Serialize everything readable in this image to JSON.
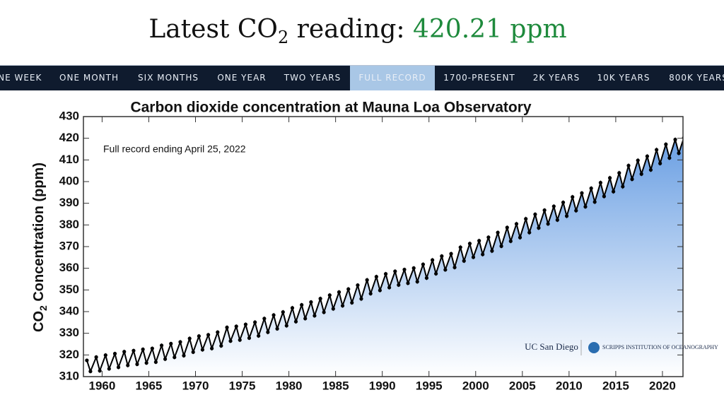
{
  "header": {
    "prefix": "Latest CO",
    "subscript": "2",
    "suffix": " reading: ",
    "value": "420.21 ppm"
  },
  "nav": {
    "tabs": [
      "ONE WEEK",
      "ONE MONTH",
      "SIX MONTHS",
      "ONE YEAR",
      "TWO YEARS",
      "FULL RECORD",
      "1700-PRESENT",
      "2K YEARS",
      "10K YEARS",
      "800K YEARS"
    ],
    "active": 5
  },
  "chart_data": {
    "type": "line",
    "title": "Carbon dioxide concentration at Mauna Loa Observatory",
    "annotation": "Full record ending April 25, 2022",
    "y_label": {
      "prefix": "CO",
      "subscript": "2",
      "suffix": " Concentration (ppm)"
    },
    "logos": [
      "UC San Diego",
      "SCRIPPS INSTITUTION OF OCEANOGRAPHY"
    ],
    "xlim": [
      1958,
      2022.2
    ],
    "xticks": [
      1960,
      1965,
      1970,
      1975,
      1980,
      1985,
      1990,
      1995,
      2000,
      2005,
      2010,
      2015,
      2020
    ],
    "ylim": [
      310,
      430
    ],
    "yticks": [
      310,
      320,
      330,
      340,
      350,
      360,
      370,
      380,
      390,
      400,
      410,
      420,
      430
    ],
    "color": "#000000",
    "fill_color": "#6a9fe3",
    "x": [
      1958.37,
      1958.75,
      1959.37,
      1959.75,
      1960.37,
      1960.75,
      1961.37,
      1961.75,
      1962.37,
      1962.75,
      1963.37,
      1963.75,
      1964.37,
      1964.75,
      1965.37,
      1965.75,
      1966.37,
      1966.75,
      1967.37,
      1967.75,
      1968.37,
      1968.75,
      1969.37,
      1969.75,
      1970.37,
      1970.75,
      1971.37,
      1971.75,
      1972.37,
      1972.75,
      1973.37,
      1973.75,
      1974.37,
      1974.75,
      1975.37,
      1975.75,
      1976.37,
      1976.75,
      1977.37,
      1977.75,
      1978.37,
      1978.75,
      1979.37,
      1979.75,
      1980.37,
      1980.75,
      1981.37,
      1981.75,
      1982.37,
      1982.75,
      1983.37,
      1983.75,
      1984.37,
      1984.75,
      1985.37,
      1985.75,
      1986.37,
      1986.75,
      1987.37,
      1987.75,
      1988.37,
      1988.75,
      1989.37,
      1989.75,
      1990.37,
      1990.75,
      1991.37,
      1991.75,
      1992.37,
      1992.75,
      1993.37,
      1993.75,
      1994.37,
      1994.75,
      1995.37,
      1995.75,
      1996.37,
      1996.75,
      1997.37,
      1997.75,
      1998.37,
      1998.75,
      1999.37,
      1999.75,
      2000.37,
      2000.75,
      2001.37,
      2001.75,
      2002.37,
      2002.75,
      2003.37,
      2003.75,
      2004.37,
      2004.75,
      2005.37,
      2005.75,
      2006.37,
      2006.75,
      2007.37,
      2007.75,
      2008.37,
      2008.75,
      2009.37,
      2009.75,
      2010.37,
      2010.75,
      2011.37,
      2011.75,
      2012.37,
      2012.75,
      2013.37,
      2013.75,
      2014.37,
      2014.75,
      2015.37,
      2015.75,
      2016.37,
      2016.75,
      2017.37,
      2017.75,
      2018.37,
      2018.75,
      2019.37,
      2019.75,
      2020.37,
      2020.75,
      2021.37,
      2021.75,
      2022.29
    ],
    "values": [
      317.5,
      312.4,
      319.0,
      312.7,
      319.9,
      313.6,
      320.6,
      314.3,
      321.5,
      315.2,
      322.0,
      315.7,
      322.6,
      316.3,
      323.0,
      316.7,
      324.4,
      318.1,
      325.2,
      318.9,
      326.0,
      319.7,
      327.6,
      321.3,
      328.7,
      322.4,
      329.3,
      323.0,
      330.5,
      324.2,
      332.7,
      326.4,
      333.2,
      326.9,
      334.1,
      327.8,
      335.1,
      328.8,
      336.8,
      330.5,
      338.4,
      332.1,
      339.8,
      333.5,
      341.7,
      335.4,
      343.1,
      336.8,
      344.4,
      338.1,
      346.0,
      339.7,
      347.6,
      341.3,
      349.0,
      342.7,
      350.4,
      344.1,
      352.2,
      345.9,
      354.6,
      348.3,
      356.1,
      349.8,
      357.4,
      351.1,
      358.6,
      352.3,
      359.4,
      353.1,
      360.1,
      353.8,
      361.8,
      355.5,
      363.8,
      357.5,
      365.6,
      359.3,
      366.7,
      360.4,
      369.7,
      363.4,
      371.4,
      365.1,
      372.7,
      366.4,
      374.3,
      368.0,
      376.5,
      370.2,
      378.8,
      372.5,
      380.5,
      374.2,
      382.8,
      376.5,
      384.9,
      378.6,
      386.8,
      380.5,
      388.6,
      382.3,
      390.4,
      384.1,
      392.9,
      386.6,
      394.7,
      388.4,
      396.9,
      390.6,
      399.5,
      393.2,
      401.7,
      395.4,
      404.0,
      397.7,
      407.4,
      401.1,
      409.8,
      403.5,
      411.7,
      405.4,
      414.7,
      408.4,
      417.2,
      410.9,
      419.4,
      413.1,
      420.2
    ]
  }
}
